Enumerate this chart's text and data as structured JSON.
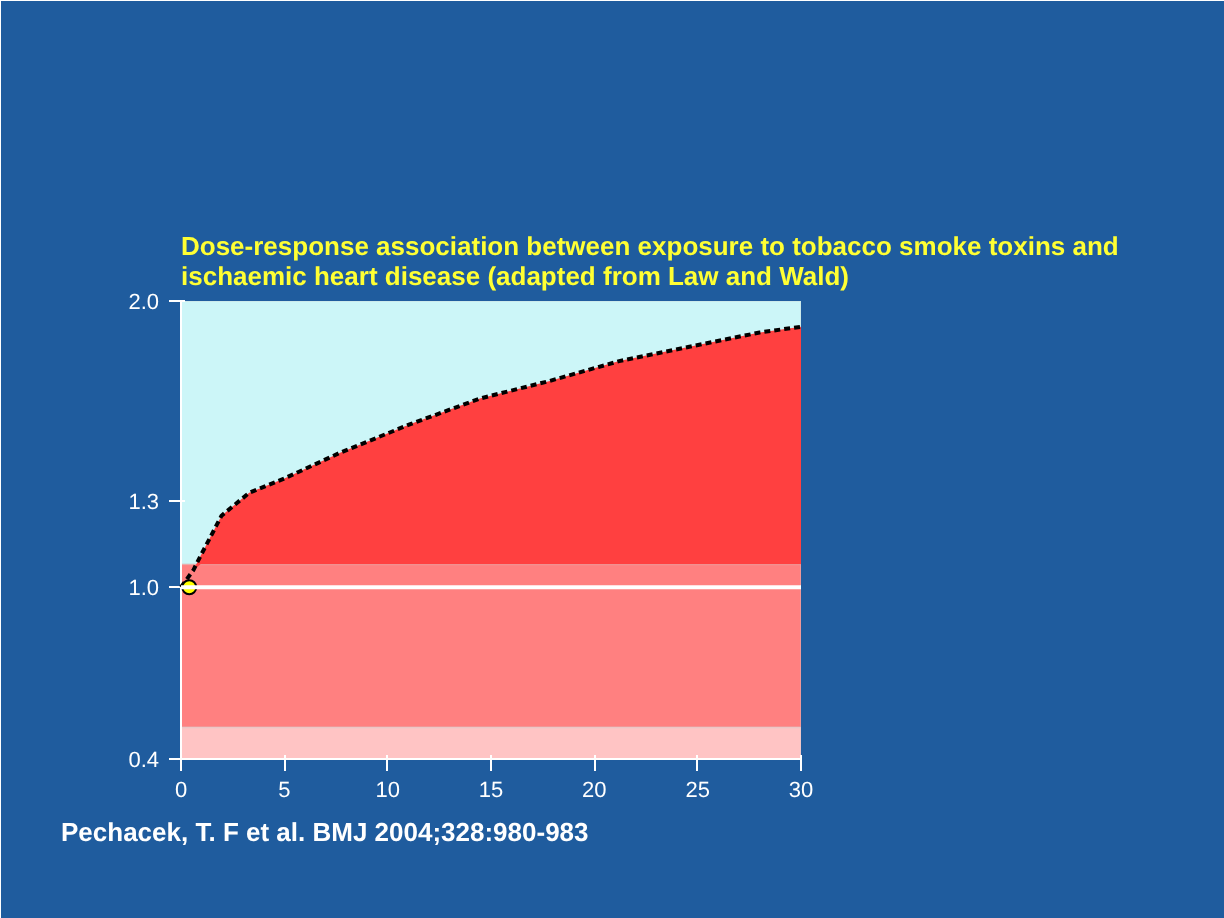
{
  "chart_data": {
    "type": "area",
    "title": "Dose-response association between exposure to tobacco smoke toxins and ischaemic heart disease (adapted from Law and Wald)",
    "annotations": [
      "Pechacek, T. F et al. BMJ 2004;328:980-983"
    ],
    "series": [
      {
        "color": "#ff4040",
        "x": [
          0,
          0.6,
          0.95,
          1.96,
          3.3,
          5,
          7.7,
          11.1,
          14.5,
          17.8,
          21.2,
          24.6,
          28,
          30
        ],
        "values": [
          1.0,
          1.06,
          1.11,
          1.25,
          1.33,
          1.38,
          1.47,
          1.57,
          1.66,
          1.72,
          1.79,
          1.84,
          1.89,
          1.91
        ]
      },
      {
        "type": "scatter",
        "color": "#ffff00",
        "x": [
          0.4
        ],
        "values": [
          1.0
        ]
      }
    ],
    "xlim": [
      0,
      30
    ],
    "xticks": [
      0,
      5,
      10,
      15,
      20,
      25,
      30
    ],
    "ylim": [
      0.4,
      2.0
    ],
    "yticks": [
      0.4,
      {
        "value": 1,
        "label": "1.0"
      },
      1.3,
      {
        "value": 2,
        "label": "2.0"
      }
    ],
    "bands": [
      {
        "axis": "y",
        "from": 1.08,
        "to": 2.0,
        "color": "#ccf6f8"
      },
      {
        "axis": "y",
        "from": 0.51,
        "to": 1.08,
        "color": "#ff8080"
      },
      {
        "axis": "y",
        "from": 0.4,
        "to": 0.51,
        "color": "#ffc4c4"
      }
    ],
    "ref_lines": [
      {
        "axis": "y",
        "value": 1.0,
        "color": "#ffffff"
      }
    ]
  }
}
